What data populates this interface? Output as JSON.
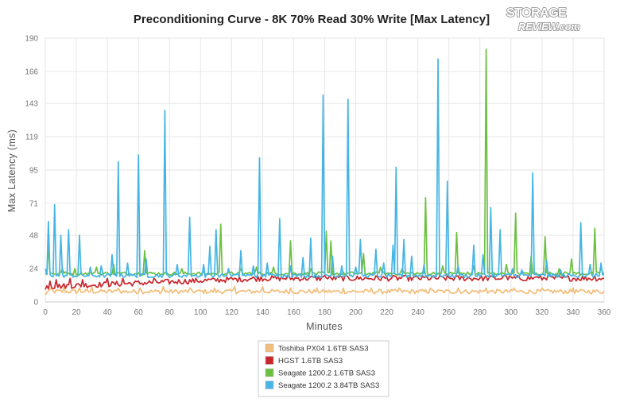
{
  "brand": {
    "logo_text_top": "STORAGE",
    "logo_text_bottom": "REVIEW.com"
  },
  "chart_data": {
    "type": "line",
    "title": "Preconditioning Curve - 8K 70% Read 30% Write [Max Latency]",
    "xlabel": "Minutes",
    "ylabel": "Max Latency (ms)",
    "xlim": [
      0,
      360
    ],
    "ylim": [
      0,
      190
    ],
    "x_ticks": [
      0,
      20,
      40,
      60,
      80,
      100,
      120,
      140,
      160,
      180,
      200,
      220,
      240,
      260,
      280,
      300,
      320,
      340,
      360
    ],
    "y_ticks": [
      0,
      24,
      48,
      71,
      95,
      119,
      143,
      166,
      190
    ],
    "grid": true,
    "legend_position": "bottom-center",
    "series": [
      {
        "name": "Toshiba PX04 1.6TB SAS3",
        "color": "#f2bd79",
        "baseline": 7.5,
        "jitter": 1.6,
        "points": [
          [
            0,
            5
          ],
          [
            4,
            10
          ],
          [
            12,
            11
          ],
          [
            22,
            10
          ],
          [
            30,
            11
          ],
          [
            47,
            10
          ],
          [
            61,
            10
          ],
          [
            76,
            11
          ],
          [
            93,
            10
          ],
          [
            109,
            10
          ],
          [
            122,
            11
          ],
          [
            140,
            11
          ],
          [
            158,
            10
          ],
          [
            175,
            10
          ],
          [
            192,
            10
          ],
          [
            210,
            10
          ],
          [
            228,
            10
          ],
          [
            248,
            10
          ],
          [
            266,
            10
          ],
          [
            284,
            10
          ],
          [
            302,
            10
          ],
          [
            320,
            10
          ],
          [
            340,
            10
          ],
          [
            360,
            8
          ]
        ]
      },
      {
        "name": "HGST 1.6TB SAS3",
        "color": "#c9262c",
        "baseline_start": 11,
        "baseline_end": 17,
        "jitter": 2.0,
        "points": [
          [
            0,
            9
          ],
          [
            3,
            15
          ],
          [
            7,
            16
          ],
          [
            16,
            17
          ],
          [
            24,
            16
          ],
          [
            40,
            17
          ],
          [
            50,
            17
          ],
          [
            70,
            17
          ],
          [
            108,
            17
          ],
          [
            139,
            18
          ],
          [
            180,
            19
          ],
          [
            230,
            18
          ],
          [
            256,
            18
          ],
          [
            296,
            19
          ],
          [
            316,
            18
          ],
          [
            324,
            20
          ],
          [
            354,
            19
          ],
          [
            360,
            17
          ]
        ]
      },
      {
        "name": "Seagate 1200.2 1.6TB SAS3",
        "color": "#6cc040",
        "baseline": 20.5,
        "jitter": 1.2,
        "points": [
          [
            2,
            42
          ],
          [
            11,
            24
          ],
          [
            19,
            24
          ],
          [
            33,
            25
          ],
          [
            44,
            27
          ],
          [
            64,
            37
          ],
          [
            88,
            24
          ],
          [
            113,
            56
          ],
          [
            126,
            24
          ],
          [
            136,
            25
          ],
          [
            147,
            25
          ],
          [
            158,
            44
          ],
          [
            171,
            24
          ],
          [
            181,
            51
          ],
          [
            184,
            44
          ],
          [
            205,
            35
          ],
          [
            216,
            25
          ],
          [
            230,
            24
          ],
          [
            245,
            75
          ],
          [
            256,
            26
          ],
          [
            265,
            50
          ],
          [
            276,
            26
          ],
          [
            284,
            182
          ],
          [
            297,
            27
          ],
          [
            303,
            64
          ],
          [
            313,
            33
          ],
          [
            322,
            47
          ],
          [
            331,
            24
          ],
          [
            339,
            31
          ],
          [
            354,
            53
          ],
          [
            358,
            25
          ]
        ]
      },
      {
        "name": "Seagate 1200.2 3.84TB SAS3",
        "color": "#45b5e5",
        "baseline": 19,
        "jitter": 1.4,
        "points": [
          [
            0,
            24
          ],
          [
            2,
            58
          ],
          [
            6,
            70
          ],
          [
            10,
            48
          ],
          [
            15,
            52
          ],
          [
            22,
            48
          ],
          [
            29,
            25
          ],
          [
            36,
            26
          ],
          [
            43,
            34
          ],
          [
            47,
            101
          ],
          [
            53,
            28
          ],
          [
            60,
            106
          ],
          [
            65,
            31
          ],
          [
            77,
            138
          ],
          [
            85,
            27
          ],
          [
            93,
            61
          ],
          [
            102,
            27
          ],
          [
            106,
            40
          ],
          [
            110,
            52
          ],
          [
            118,
            24
          ],
          [
            126,
            37
          ],
          [
            134,
            26
          ],
          [
            138,
            104
          ],
          [
            143,
            28
          ],
          [
            151,
            60
          ],
          [
            158,
            26
          ],
          [
            166,
            32
          ],
          [
            171,
            46
          ],
          [
            179,
            149
          ],
          [
            185,
            33
          ],
          [
            191,
            26
          ],
          [
            195,
            146
          ],
          [
            200,
            25
          ],
          [
            203,
            45
          ],
          [
            213,
            38
          ],
          [
            218,
            28
          ],
          [
            224,
            41
          ],
          [
            226,
            97
          ],
          [
            231,
            45
          ],
          [
            236,
            33
          ],
          [
            244,
            27
          ],
          [
            253,
            175
          ],
          [
            259,
            87
          ],
          [
            266,
            26
          ],
          [
            276,
            41
          ],
          [
            282,
            34
          ],
          [
            287,
            68
          ],
          [
            293,
            52
          ],
          [
            301,
            24
          ],
          [
            307,
            23
          ],
          [
            314,
            93
          ],
          [
            323,
            30
          ],
          [
            332,
            23
          ],
          [
            345,
            57
          ],
          [
            351,
            27
          ],
          [
            358,
            28
          ]
        ]
      }
    ]
  }
}
